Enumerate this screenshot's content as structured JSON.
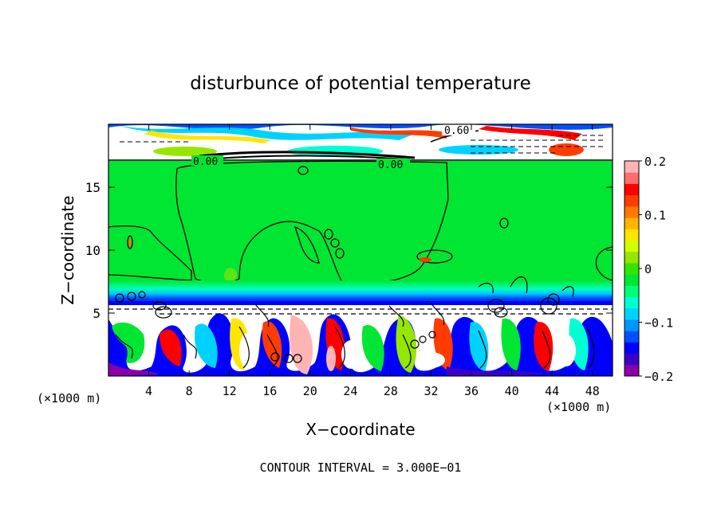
{
  "chart_data": {
    "type": "heatmap",
    "title": "disturbunce of potential temperature",
    "xlabel": "X−coordinate",
    "ylabel": "Z−coordinate",
    "x_unit_label": "(×1000 m)",
    "y_unit_label": "(×1000 m)",
    "xlim": [
      0,
      50
    ],
    "ylim": [
      0,
      20
    ],
    "x_ticks": [
      4,
      8,
      12,
      16,
      20,
      24,
      28,
      32,
      36,
      40,
      44,
      48
    ],
    "y_ticks": [
      5,
      10,
      15
    ],
    "colorbar": {
      "range": [
        -0.2,
        0.2
      ],
      "ticks": [
        0.2,
        0.1,
        0,
        -0.1,
        -0.2
      ],
      "tick_labels": [
        "0.2",
        "0.1",
        "0",
        "−0.1",
        "−0.2"
      ],
      "colors": [
        "#8b00aa",
        "#3a00c8",
        "#0000ff",
        "#0050ff",
        "#0096ff",
        "#00d2ff",
        "#00ffd2",
        "#00ff78",
        "#00e632",
        "#32e600",
        "#96e600",
        "#d2ff00",
        "#ffe600",
        "#ffb400",
        "#ff7800",
        "#ff3c00",
        "#ff0000",
        "#ff6e6e",
        "#ffb4b4"
      ]
    },
    "contour_labels": [
      "0.60",
      "0.00",
      "0.00"
    ],
    "contour_interval_text": "CONTOUR INTERVAL = 3.000E−01",
    "background_value": 0.0,
    "features": [
      {
        "region": "upper band",
        "z_range": [
          17.2,
          20
        ],
        "values": [
          -0.3,
          0.6
        ],
        "note": "strong alternating structure, 0.60 contour"
      },
      {
        "region": "middle layer",
        "z_range": [
          6,
          17.2
        ],
        "value": 0.0,
        "note": "near-zero disturbance"
      },
      {
        "region": "lower layer",
        "z_range": [
          0,
          6
        ],
        "values": [
          -0.2,
          0.2
        ],
        "note": "turbulent convective eddies"
      }
    ]
  }
}
